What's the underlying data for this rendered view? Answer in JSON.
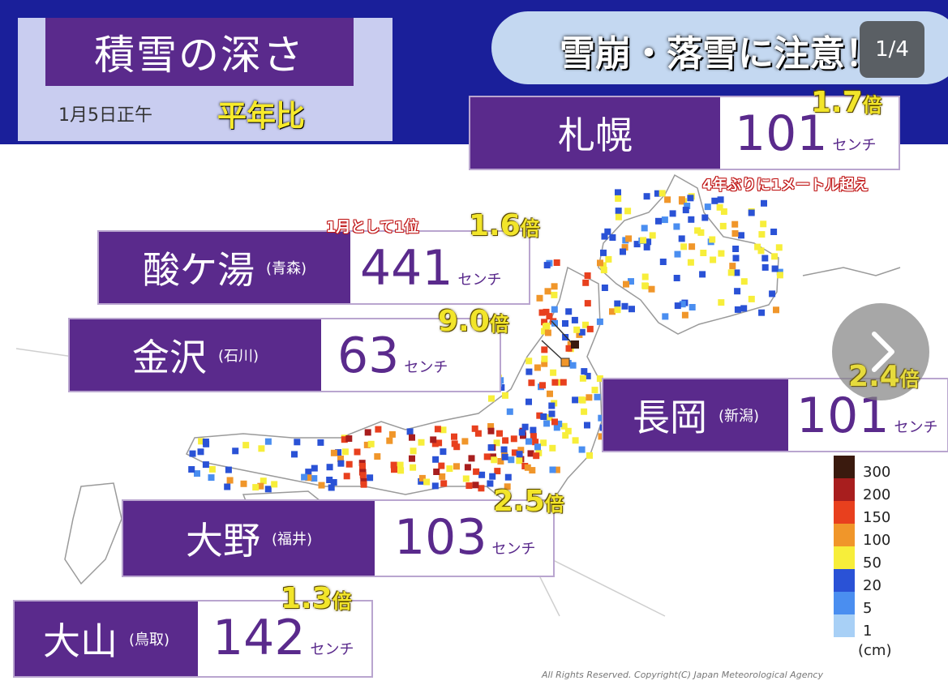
{
  "header": {
    "title": "積雪の深さ",
    "date": "1月5日正午",
    "comparison_label": "平年比",
    "warning": "雪崩・落雪に注意！"
  },
  "ui": {
    "page_indicator": "1/4",
    "next_icon": "chevron-right-icon"
  },
  "cities": [
    {
      "id": "sapporo",
      "name": "札幌",
      "pref": "",
      "value": "101",
      "unit": "センチ",
      "ratio": "1.7",
      "ratio_unit": "倍",
      "note": "4年ぶりに1メートル超え"
    },
    {
      "id": "sukayu",
      "name": "酸ケ湯",
      "pref": "(青森)",
      "value": "441",
      "unit": "センチ",
      "ratio": "1.6",
      "ratio_unit": "倍",
      "note": "1月として1位"
    },
    {
      "id": "kanazawa",
      "name": "金沢",
      "pref": "(石川)",
      "value": "63",
      "unit": "センチ",
      "ratio": "9.0",
      "ratio_unit": "倍",
      "note": ""
    },
    {
      "id": "nagaoka",
      "name": "長岡",
      "pref": "(新潟)",
      "value": "101",
      "unit": "センチ",
      "ratio": "2.4",
      "ratio_unit": "倍",
      "note": ""
    },
    {
      "id": "ono",
      "name": "大野",
      "pref": "(福井)",
      "value": "103",
      "unit": "センチ",
      "ratio": "2.5",
      "ratio_unit": "倍",
      "note": ""
    },
    {
      "id": "daisen",
      "name": "大山",
      "pref": "(鳥取)",
      "value": "142",
      "unit": "センチ",
      "ratio": "1.3",
      "ratio_unit": "倍",
      "note": ""
    }
  ],
  "legend": {
    "unit": "(cm)",
    "levels": [
      {
        "label": "300",
        "color": "#3a1a0e"
      },
      {
        "label": "200",
        "color": "#a81e1e"
      },
      {
        "label": "150",
        "color": "#e8401e"
      },
      {
        "label": "100",
        "color": "#f0962a"
      },
      {
        "label": "50",
        "color": "#f7ee3a"
      },
      {
        "label": "20",
        "color": "#2a52d6"
      },
      {
        "label": "5",
        "color": "#4a8ef0"
      },
      {
        "label": "1",
        "color": "#a8d0f6"
      }
    ]
  },
  "copyright": "All Rights Reserved. Copyright(C) Japan Meteorological Agency"
}
